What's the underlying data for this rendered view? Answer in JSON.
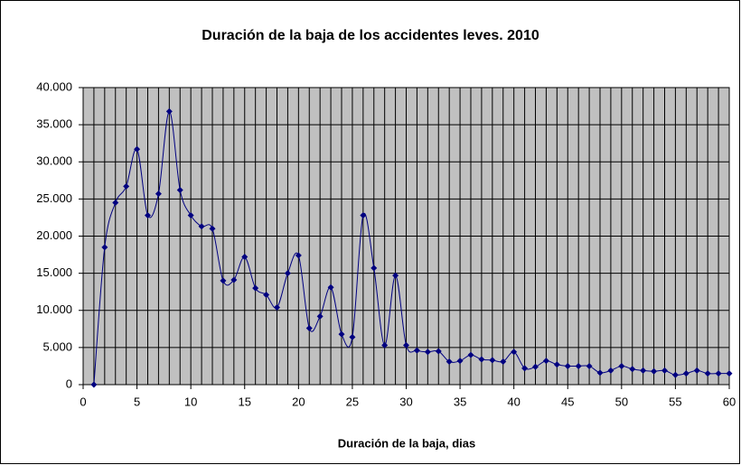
{
  "chart_data": {
    "type": "line",
    "title": "Duración de la baja de los accidentes leves. 2010",
    "x_label": "Duración de la baja, dias",
    "x": [
      1,
      2,
      3,
      4,
      5,
      6,
      7,
      8,
      9,
      10,
      11,
      12,
      13,
      14,
      15,
      16,
      17,
      18,
      19,
      20,
      21,
      22,
      23,
      24,
      25,
      26,
      27,
      28,
      29,
      30,
      31,
      32,
      33,
      34,
      35,
      36,
      37,
      38,
      39,
      40,
      41,
      42,
      43,
      44,
      45,
      46,
      47,
      48,
      49,
      50,
      51,
      52,
      53,
      54,
      55,
      56,
      57,
      58,
      59,
      60
    ],
    "series": [
      {
        "name": "Duración de la baja",
        "color": "#000080",
        "values": [
          0,
          18500,
          24500,
          26700,
          31700,
          22800,
          25700,
          36800,
          26200,
          22800,
          21300,
          21000,
          14000,
          14100,
          17200,
          13000,
          12100,
          10400,
          15000,
          17400,
          7600,
          9200,
          13100,
          6800,
          6400,
          22800,
          15700,
          5300,
          14700,
          5300,
          4600,
          4400,
          4500,
          3100,
          3200,
          4000,
          3400,
          3300,
          3100,
          4400,
          2200,
          2400,
          3200,
          2700,
          2500,
          2500,
          2500,
          1600,
          1900,
          2500,
          2100,
          1900,
          1800,
          1900,
          1300,
          1500,
          1900,
          1500,
          1500,
          1500
        ]
      }
    ],
    "xlim": [
      0,
      60
    ],
    "xticks": [
      0,
      5,
      10,
      15,
      20,
      25,
      30,
      35,
      40,
      45,
      50,
      55,
      60
    ],
    "ylim": [
      0,
      40000
    ],
    "yticks": [
      0,
      {
        "value": 5000,
        "label": "5.000"
      },
      {
        "value": 10000,
        "label": "10.000"
      },
      {
        "value": 15000,
        "label": "15.000"
      },
      {
        "value": 20000,
        "label": "20.000"
      },
      {
        "value": 25000,
        "label": "25.000"
      },
      {
        "value": 30000,
        "label": "30.000"
      },
      {
        "value": 35000,
        "label": "35.000"
      },
      {
        "value": 40000,
        "label": "40.000"
      }
    ],
    "grid": true,
    "plot_background": "#c0c0c0"
  }
}
